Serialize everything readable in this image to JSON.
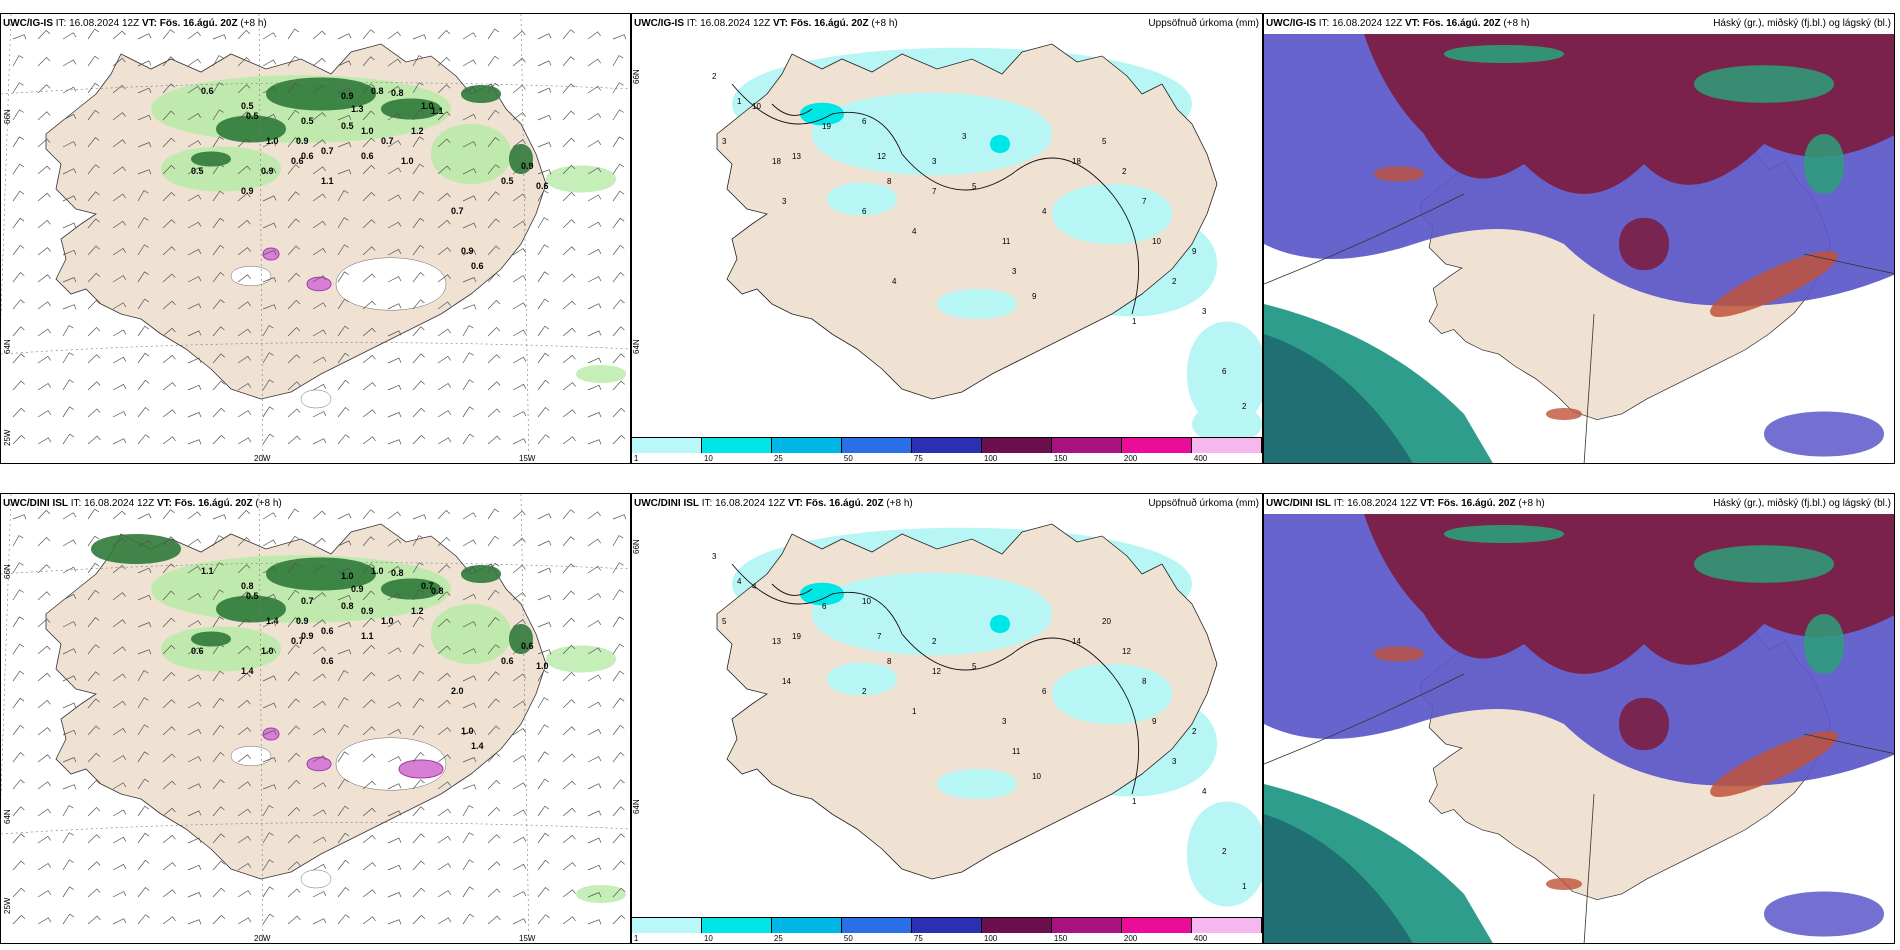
{
  "colors": {
    "land": "#efe2d3",
    "sea": "#ffffff",
    "cloud_high": "#7b1f45",
    "cloud_mid": "#5b57c9",
    "cloud_low": "#2e9d8c",
    "light_green": "#b7eaa6",
    "dark_green": "#2f7a3a",
    "precip": "#b8f5f5"
  },
  "rows": [
    {
      "model": "UWC/IG-IS",
      "it_label": "IT:",
      "it_value": "16.08.2024 12Z",
      "vt_label": "VT:",
      "vt_value": "Fös. 16.ágú. 20Z",
      "lead": "(+8 h)",
      "precip_title": "Uppsöfnuð úrkoma (mm)",
      "cloud_title": "Háský (gr.), miðský (fj.bl.) og lágský (bl.)",
      "lat_labels": [
        "66N",
        "64N",
        "25W"
      ],
      "lon_labels": [
        "20W",
        "15W"
      ],
      "wind_values": [
        "0.6",
        "0.5",
        "0.5",
        "0.5",
        "0.9",
        "1.3",
        "0.8",
        "0.8",
        "1.0",
        "1.0",
        "1.2",
        "0.7",
        "0.6",
        "0.7",
        "0.6",
        "0.9",
        "1.1",
        "0.9",
        "0.7",
        "0.6",
        "0.9",
        "0.6",
        "0.5",
        "0.9",
        "1.1",
        "1.0",
        "0.9",
        "0.5",
        "0.5",
        "0.6",
        "1.0"
      ],
      "precip_values": [
        "2",
        "1",
        "3",
        "10",
        "19",
        "18",
        "13",
        "3",
        "6",
        "12",
        "8",
        "7",
        "6",
        "4",
        "5",
        "11",
        "4",
        "3",
        "9",
        "18",
        "5",
        "2",
        "7",
        "10",
        "2",
        "9",
        "3",
        "1",
        "6",
        "2",
        "3",
        "4",
        "3"
      ]
    },
    {
      "model": "UWC/DINI ISL",
      "it_label": "IT:",
      "it_value": "16.08.2024 12Z",
      "vt_label": "VT:",
      "vt_value": "Fös. 16.ágú. 20Z",
      "lead": "(+8 h)",
      "precip_title": "Uppsöfnuð úrkoma (mm)",
      "cloud_title": "Háský (gr.), miðský (fj.bl.) og lágský (bl.)",
      "lat_labels": [
        "66N",
        "64N",
        "25W"
      ],
      "lon_labels": [
        "20W",
        "15W"
      ],
      "wind_values": [
        "1.1",
        "0.8",
        "0.5",
        "0.6",
        "1.0",
        "0.9",
        "1.0",
        "0.8",
        "0.7",
        "0.9",
        "1.2",
        "1.0",
        "0.9",
        "0.6",
        "0.7",
        "1.0",
        "0.6",
        "1.4",
        "2.0",
        "1.4",
        "0.6",
        "1.0",
        "0.6",
        "1.0",
        "0.8",
        "1.4",
        "0.9",
        "0.8",
        "0.7",
        "1.1"
      ],
      "precip_values": [
        "3",
        "4",
        "5",
        "4",
        "6",
        "13",
        "19",
        "14",
        "10",
        "7",
        "8",
        "12",
        "2",
        "1",
        "5",
        "3",
        "6",
        "11",
        "10",
        "14",
        "20",
        "12",
        "8",
        "9",
        "3",
        "2",
        "4",
        "1",
        "2",
        "1",
        "2"
      ]
    }
  ],
  "colorbar": {
    "ticks": [
      "1",
      "10",
      "25",
      "50",
      "75",
      "100",
      "150",
      "200",
      "400"
    ],
    "colors": [
      "#b8f8f8",
      "#00e5e5",
      "#00b7e6",
      "#2a6fe8",
      "#2b2fb2",
      "#6b0f4e",
      "#a8137f",
      "#ea0b99",
      "#f6b6ee"
    ]
  }
}
